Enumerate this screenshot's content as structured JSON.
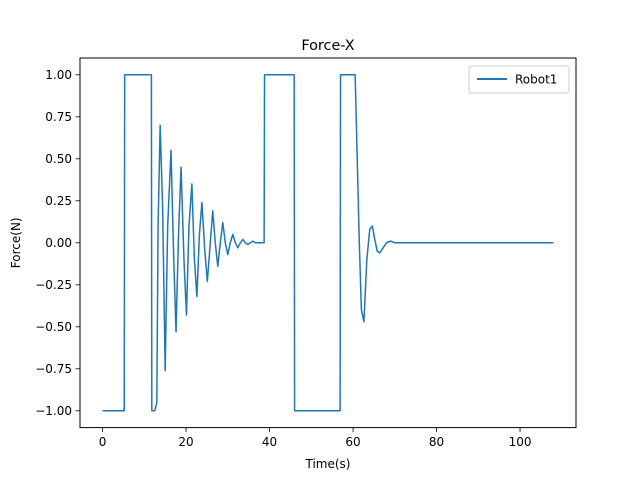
{
  "chart_data": {
    "type": "line",
    "title": "Force-X",
    "xlabel": "Time(s)",
    "ylabel": "Force(N)",
    "xlim": [
      -5.4,
      113.4
    ],
    "ylim": [
      -1.1,
      1.1
    ],
    "xticks": [
      0,
      20,
      40,
      60,
      80,
      100
    ],
    "yticks": [
      -1.0,
      -0.75,
      -0.5,
      -0.25,
      0.0,
      0.25,
      0.5,
      0.75,
      1.0
    ],
    "xtick_labels": [
      "0",
      "20",
      "40",
      "60",
      "80",
      "100"
    ],
    "ytick_labels": [
      "−1.00",
      "−0.75",
      "−0.50",
      "−0.25",
      "0.00",
      "0.25",
      "0.50",
      "0.75",
      "1.00"
    ],
    "grid": false,
    "legend_position": "top-right",
    "series": [
      {
        "name": "Robot1",
        "color": "#1f77b4",
        "x": [
          0,
          5.2,
          5.3,
          11.7,
          11.8,
          12.5,
          13.0,
          13.3,
          13.8,
          14.4,
          15.0,
          15.6,
          16.4,
          17.0,
          17.6,
          18.2,
          18.8,
          19.5,
          20.1,
          20.7,
          21.4,
          22.0,
          22.6,
          23.2,
          23.8,
          24.5,
          25.1,
          25.8,
          26.4,
          27.0,
          27.6,
          28.2,
          28.8,
          29.4,
          30.0,
          30.6,
          31.2,
          31.8,
          32.4,
          33.0,
          33.6,
          34.2,
          34.8,
          35.4,
          36.0,
          36.6,
          37.2,
          37.8,
          38.6,
          38.7,
          38.8,
          45.9,
          46.0,
          56.9,
          57.0,
          60.5,
          61.0,
          61.5,
          62.0,
          62.6,
          63.3,
          64.0,
          64.6,
          65.2,
          65.8,
          66.4,
          67.2,
          68.0,
          69.0,
          70.0,
          71.0,
          72.0,
          73.0,
          75.0,
          108.0
        ],
        "y": [
          -1.0,
          -1.0,
          1.0,
          1.0,
          -1.0,
          -1.0,
          -0.95,
          0.1,
          0.7,
          0.2,
          -0.76,
          0.1,
          0.55,
          -0.05,
          -0.53,
          0.05,
          0.45,
          -0.1,
          -0.43,
          0.1,
          0.35,
          -0.1,
          -0.32,
          0.05,
          0.24,
          -0.05,
          -0.23,
          0.0,
          0.19,
          0.0,
          -0.14,
          0.0,
          0.12,
          0.0,
          -0.07,
          0.0,
          0.05,
          0.0,
          -0.03,
          0.0,
          0.02,
          0.0,
          -0.01,
          0.0,
          0.01,
          0.0,
          0.0,
          0.0,
          0.0,
          0.0,
          1.0,
          1.0,
          -1.0,
          -1.0,
          1.0,
          1.0,
          0.5,
          0.0,
          -0.4,
          -0.47,
          -0.1,
          0.08,
          0.1,
          0.02,
          -0.05,
          -0.06,
          -0.03,
          0.0,
          0.01,
          0.0,
          0.0,
          0.0,
          0.0,
          0.0,
          0.0
        ]
      }
    ]
  }
}
